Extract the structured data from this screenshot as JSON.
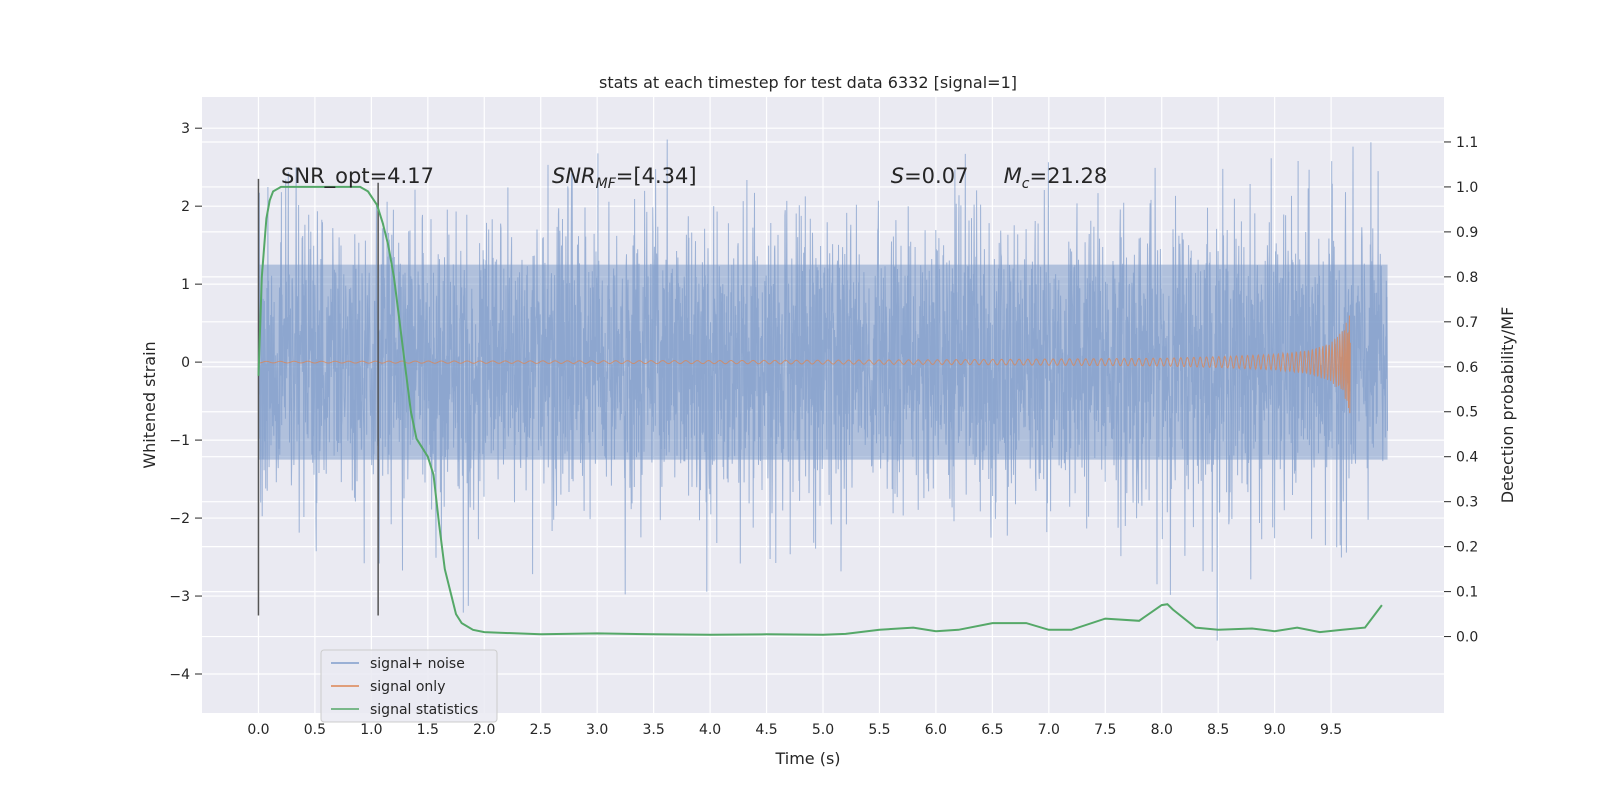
{
  "chart_data": {
    "type": "line",
    "title": "stats at each timestep for test data 6332 [signal=1]",
    "xlabel": "Time (s)",
    "ylabel": "Whitened strain",
    "y2label": "Detection probability/MF",
    "xlim": [
      -0.5,
      10.5
    ],
    "ylim": [
      -4.5,
      3.4
    ],
    "y2lim": [
      -0.17,
      1.2
    ],
    "xticks": [
      0.0,
      0.5,
      1.0,
      1.5,
      2.0,
      2.5,
      3.0,
      3.5,
      4.0,
      4.5,
      5.0,
      5.5,
      6.0,
      6.5,
      7.0,
      7.5,
      8.0,
      8.5,
      9.0,
      9.5
    ],
    "xtick_labels": [
      "0.0",
      "0.5",
      "1.0",
      "1.5",
      "2.0",
      "2.5",
      "3.0",
      "3.5",
      "4.0",
      "4.5",
      "5.0",
      "5.5",
      "6.0",
      "6.5",
      "7.0",
      "7.5",
      "8.0",
      "8.5",
      "9.0",
      "9.5"
    ],
    "yticks": [
      -4,
      -3,
      -2,
      -1,
      0,
      1,
      2,
      3
    ],
    "ytick_labels": [
      "−4",
      "−3",
      "−2",
      "−1",
      "0",
      "1",
      "2",
      "3"
    ],
    "y2ticks": [
      0.0,
      0.1,
      0.2,
      0.3,
      0.4,
      0.5,
      0.6,
      0.7,
      0.8,
      0.9,
      1.0,
      1.1
    ],
    "y2tick_labels": [
      "0.0",
      "0.1",
      "0.2",
      "0.3",
      "0.4",
      "0.5",
      "0.6",
      "0.7",
      "0.8",
      "0.9",
      "1.0",
      "1.1"
    ],
    "grid": true,
    "legend_position": "lower-left",
    "series": [
      {
        "name": "signal+ noise",
        "color": "#7f9ccb",
        "axis": "left",
        "x_range": [
          0.0,
          10.0
        ],
        "envelope_typical": 1.25,
        "envelope_peak_max": 3.1,
        "envelope_peak_min": -4.0
      },
      {
        "name": "signal only",
        "color": "#dd8452",
        "axis": "left",
        "x_range": [
          0.0,
          9.67
        ],
        "x": [
          0.0,
          2.0,
          4.0,
          6.0,
          7.0,
          8.0,
          8.5,
          9.0,
          9.3,
          9.5,
          9.6,
          9.65,
          9.67
        ],
        "y": [
          0.01,
          0.015,
          0.02,
          0.03,
          0.04,
          0.05,
          0.07,
          0.1,
          0.15,
          0.25,
          0.4,
          0.6,
          0.75
        ]
      },
      {
        "name": "signal statistics",
        "color": "#55a868",
        "axis": "right",
        "x": [
          0.0,
          0.03,
          0.07,
          0.1,
          0.13,
          0.2,
          0.3,
          0.5,
          0.7,
          0.9,
          0.97,
          1.05,
          1.1,
          1.15,
          1.2,
          1.25,
          1.3,
          1.35,
          1.4,
          1.45,
          1.5,
          1.55,
          1.6,
          1.65,
          1.7,
          1.75,
          1.8,
          1.9,
          2.0,
          2.5,
          3.0,
          3.5,
          4.0,
          4.5,
          5.0,
          5.2,
          5.5,
          5.8,
          6.0,
          6.2,
          6.5,
          6.8,
          7.0,
          7.2,
          7.5,
          7.8,
          8.0,
          8.05,
          8.1,
          8.3,
          8.5,
          8.8,
          9.0,
          9.2,
          9.4,
          9.6,
          9.8,
          9.95
        ],
        "y": [
          0.58,
          0.8,
          0.93,
          0.97,
          0.99,
          1.0,
          1.0,
          1.0,
          1.0,
          1.0,
          0.99,
          0.96,
          0.92,
          0.87,
          0.8,
          0.7,
          0.6,
          0.5,
          0.44,
          0.42,
          0.4,
          0.36,
          0.25,
          0.15,
          0.1,
          0.05,
          0.03,
          0.015,
          0.01,
          0.005,
          0.007,
          0.005,
          0.004,
          0.005,
          0.004,
          0.006,
          0.015,
          0.02,
          0.012,
          0.015,
          0.03,
          0.03,
          0.015,
          0.015,
          0.04,
          0.035,
          0.07,
          0.072,
          0.06,
          0.02,
          0.015,
          0.018,
          0.012,
          0.02,
          0.01,
          0.015,
          0.02,
          0.07
        ]
      }
    ],
    "annotations": [
      {
        "text": "SNR_opt=4.17",
        "x": 0.2
      },
      {
        "text": "SNR_MF=[4.34]",
        "x": 2.6,
        "base": "SNR",
        "sub": "MF",
        "suffix": "=[4.34]"
      },
      {
        "text": "S=0.07",
        "x": 5.6,
        "base": "S",
        "suffix": "=0.07"
      },
      {
        "text": "M_c=21.28",
        "x": 6.6,
        "base": "M",
        "sub": "c",
        "suffix": "=21.28"
      }
    ],
    "vertical_lines": [
      {
        "x": 0.0,
        "y_range": [
          -3.25,
          2.35
        ],
        "color": "#555555"
      },
      {
        "x": 1.06,
        "y_range": [
          -3.25,
          2.3
        ],
        "color": "#555555"
      }
    ]
  }
}
